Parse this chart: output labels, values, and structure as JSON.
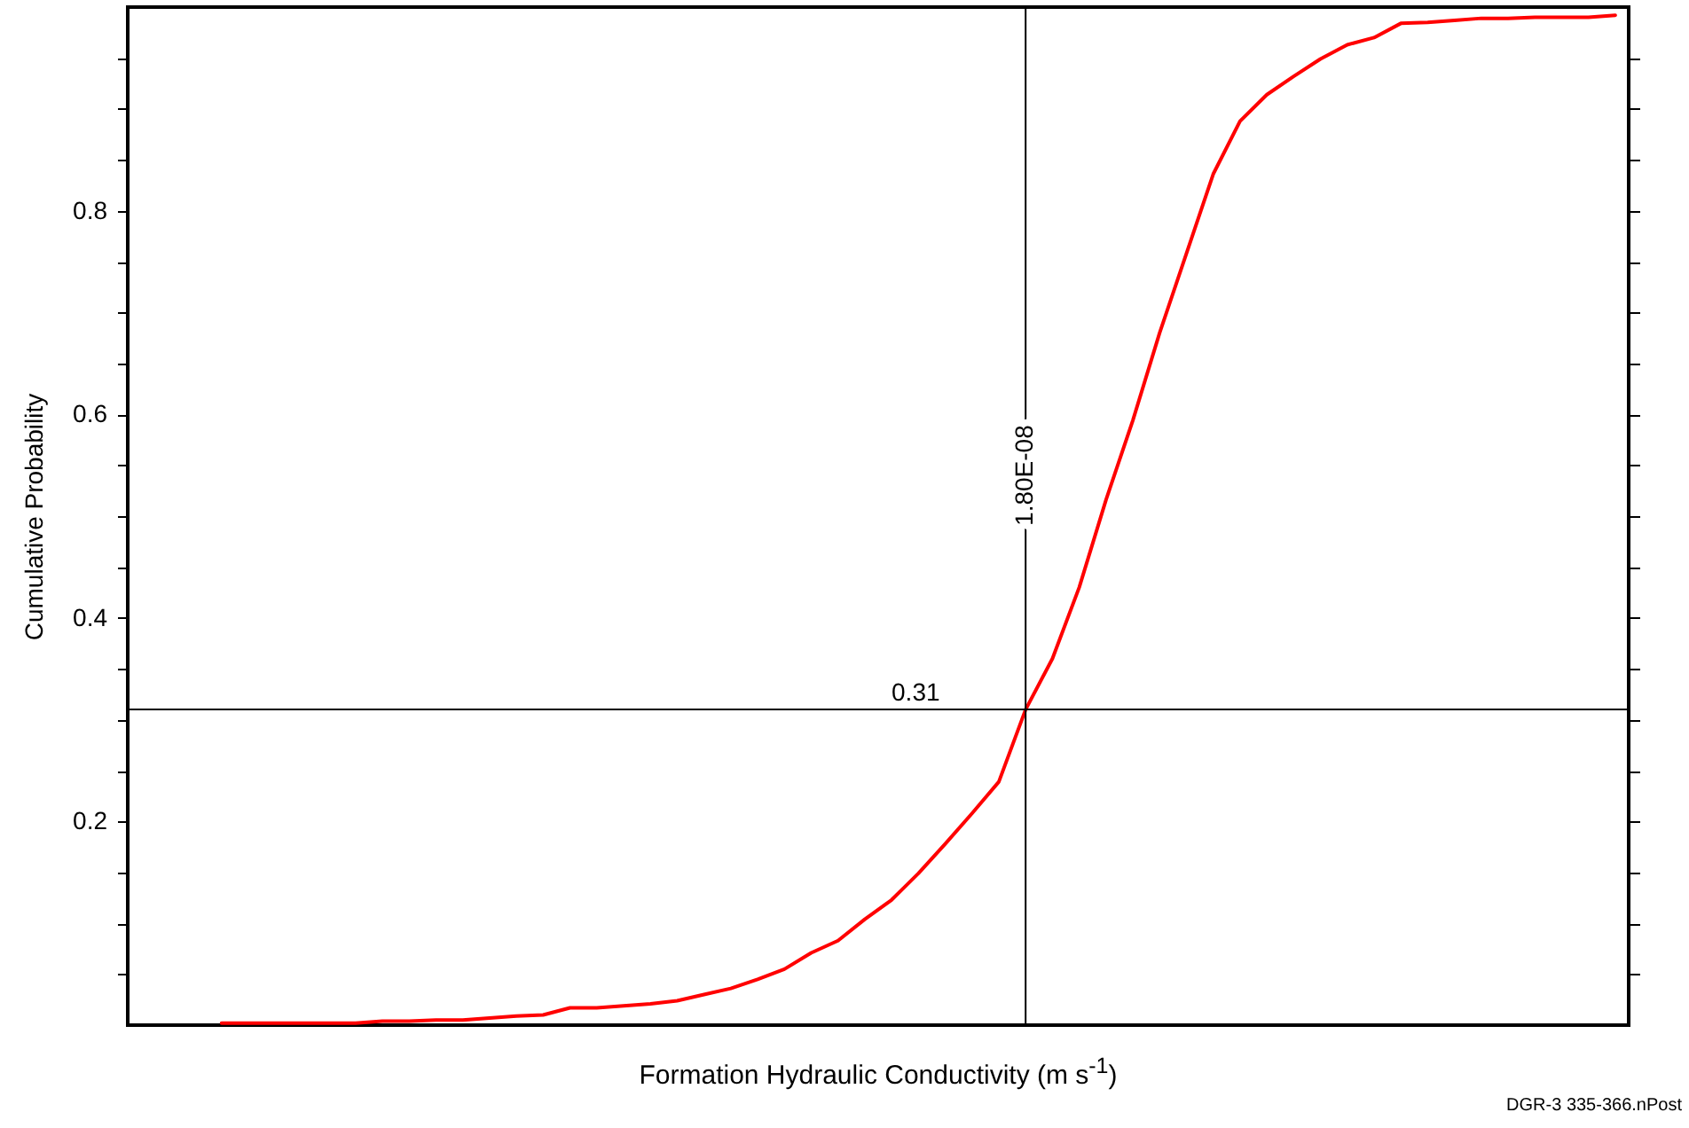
{
  "chart_data": {
    "type": "line",
    "xlabel": "Formation Hydraulic Conductivity (m s$^{-1}$)",
    "ylabel": "Cumulative Probability",
    "categories": [
      null,
      null,
      null,
      null,
      null,
      null,
      null,
      null,
      null,
      null,
      null,
      null,
      null,
      null,
      null,
      null,
      null,
      null,
      null,
      null,
      null,
      null,
      null,
      null,
      null,
      null,
      null,
      null,
      null,
      null,
      null,
      null,
      null,
      null,
      null,
      null,
      null,
      null,
      null,
      null,
      null,
      null,
      null,
      null,
      null,
      null,
      null,
      null,
      null,
      null,
      null,
      null,
      null,
      null,
      null,
      null
    ],
    "series": [
      {
        "color": "#ff0000",
        "values": [
          null,
          null,
          null,
          0.002,
          0.002,
          0.002,
          0.002,
          0.002,
          0.002,
          0.004,
          0.004,
          0.005,
          0.005,
          0.007,
          0.009,
          0.01,
          0.017,
          0.017,
          0.019,
          0.021,
          0.024,
          0.03,
          0.036,
          0.045,
          0.055,
          0.071,
          0.083,
          0.104,
          0.123,
          0.149,
          0.178,
          0.208,
          0.239,
          0.31,
          0.36,
          0.43,
          0.516,
          0.594,
          0.68,
          0.758,
          0.836,
          0.888,
          0.914,
          0.932,
          0.949,
          0.963,
          0.97,
          0.984,
          0.985,
          0.987,
          0.989,
          0.989,
          0.99,
          0.99,
          0.99,
          0.992
        ]
      }
    ],
    "ylim": [
      0,
      1
    ],
    "yticks": [
      {
        "value": 0.05,
        "label": null
      },
      {
        "value": 0.1,
        "label": null
      },
      {
        "value": 0.15,
        "label": null
      },
      0.2,
      {
        "value": 0.25,
        "label": null
      },
      {
        "value": 0.3,
        "label": null
      },
      {
        "value": 0.35,
        "label": null
      },
      0.4,
      {
        "value": 0.45,
        "label": null
      },
      {
        "value": 0.5,
        "label": null
      },
      {
        "value": 0.55,
        "label": null
      },
      0.6,
      {
        "value": 0.65,
        "label": null
      },
      {
        "value": 0.7,
        "label": null
      },
      {
        "value": 0.75,
        "label": null
      },
      0.8,
      {
        "value": 0.85,
        "label": null
      },
      {
        "value": 0.9,
        "label": null
      },
      {
        "value": 0.95,
        "label": null
      }
    ],
    "ref_lines": [
      {
        "axis": "y",
        "value": 0.31,
        "label": "0.31",
        "color": "#000000"
      },
      {
        "axis": "x",
        "label": "1.80E-08",
        "color": "#000000"
      }
    ],
    "annotations": [
      "DGR-3  335-366.nPost"
    ],
    "grid": false,
    "marker": "none",
    "line_style": "solid"
  }
}
